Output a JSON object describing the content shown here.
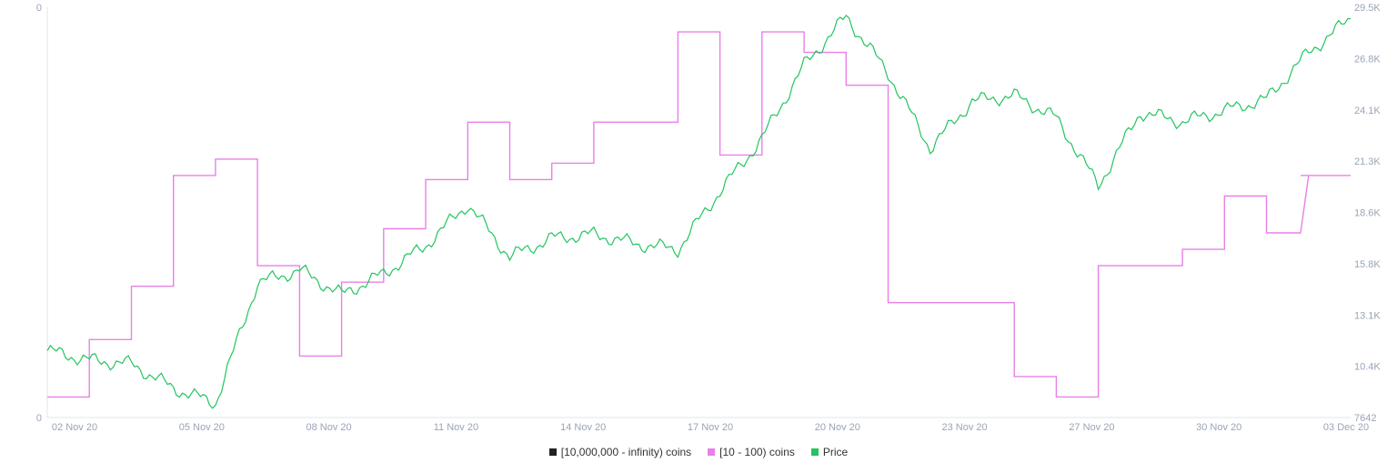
{
  "chart_data": {
    "type": "line",
    "title": "",
    "x_ticks": [
      "02 Nov 20",
      "05 Nov 20",
      "08 Nov 20",
      "11 Nov 20",
      "14 Nov 20",
      "17 Nov 20",
      "20 Nov 20",
      "23 Nov 20",
      "27 Nov 20",
      "30 Nov 20",
      "03 Dec 20"
    ],
    "xlim": [
      "2020-11-01",
      "2020-12-02"
    ],
    "y_left_ticks": [
      "0",
      "0"
    ],
    "y_right_ticks": [
      "29.5K",
      "26.8K",
      "24.1K",
      "21.3K",
      "18.6K",
      "15.8K",
      "13.1K",
      "10.4K",
      "7642"
    ],
    "y_right_lim": [
      7642,
      29500
    ],
    "legend_position": "bottom-center",
    "grid": false,
    "series": [
      {
        "name": "[10,000,000 - infinity) coins",
        "color": "#222222",
        "axis": "left",
        "values": []
      },
      {
        "name": "[10 - 100) coins",
        "color": "#e880e8",
        "axis": "left",
        "shape": "step",
        "x": [
          "2020-11-01",
          "2020-11-02",
          "2020-11-03",
          "2020-11-04",
          "2020-11-05",
          "2020-11-06",
          "2020-11-07",
          "2020-11-08",
          "2020-11-09",
          "2020-11-10",
          "2020-11-11",
          "2020-11-12",
          "2020-11-13",
          "2020-11-14",
          "2020-11-15",
          "2020-11-16",
          "2020-11-17",
          "2020-11-18",
          "2020-11-19",
          "2020-11-20",
          "2020-11-21",
          "2020-11-22",
          "2020-11-23",
          "2020-11-24",
          "2020-11-25",
          "2020-11-26",
          "2020-11-27",
          "2020-11-28",
          "2020-11-29",
          "2020-11-30",
          "2020-12-01",
          "2020-12-02"
        ],
        "values": [
          5,
          19,
          32,
          59,
          63,
          37,
          15,
          33,
          46,
          58,
          72,
          58,
          62,
          72,
          72,
          94,
          64,
          94,
          89,
          81,
          28,
          28,
          28,
          10,
          5,
          37,
          37,
          41,
          54,
          45,
          59,
          59
        ]
      },
      {
        "name": "Price",
        "color": "#22c55e",
        "axis": "right",
        "x": [
          "2020-11-01",
          "2020-11-02",
          "2020-11-03",
          "2020-11-04",
          "2020-11-05",
          "2020-11-06",
          "2020-11-07",
          "2020-11-08",
          "2020-11-09",
          "2020-11-10",
          "2020-11-11",
          "2020-11-12",
          "2020-11-13",
          "2020-11-14",
          "2020-11-15",
          "2020-11-16",
          "2020-11-17",
          "2020-11-18",
          "2020-11-19",
          "2020-11-20",
          "2020-11-21",
          "2020-11-22",
          "2020-11-23",
          "2020-11-24",
          "2020-11-25",
          "2020-11-26",
          "2020-11-27",
          "2020-11-28",
          "2020-11-29",
          "2020-11-30",
          "2020-12-01",
          "2020-12-02"
        ],
        "values": [
          11200,
          10700,
          10500,
          9200,
          8400,
          14800,
          15500,
          14200,
          15300,
          16800,
          19000,
          16200,
          17200,
          17400,
          16900,
          16600,
          19700,
          22500,
          26400,
          29000,
          26000,
          22000,
          24500,
          24800,
          23600,
          20000,
          23900,
          23400,
          24000,
          24600,
          27100,
          28900
        ]
      }
    ]
  }
}
